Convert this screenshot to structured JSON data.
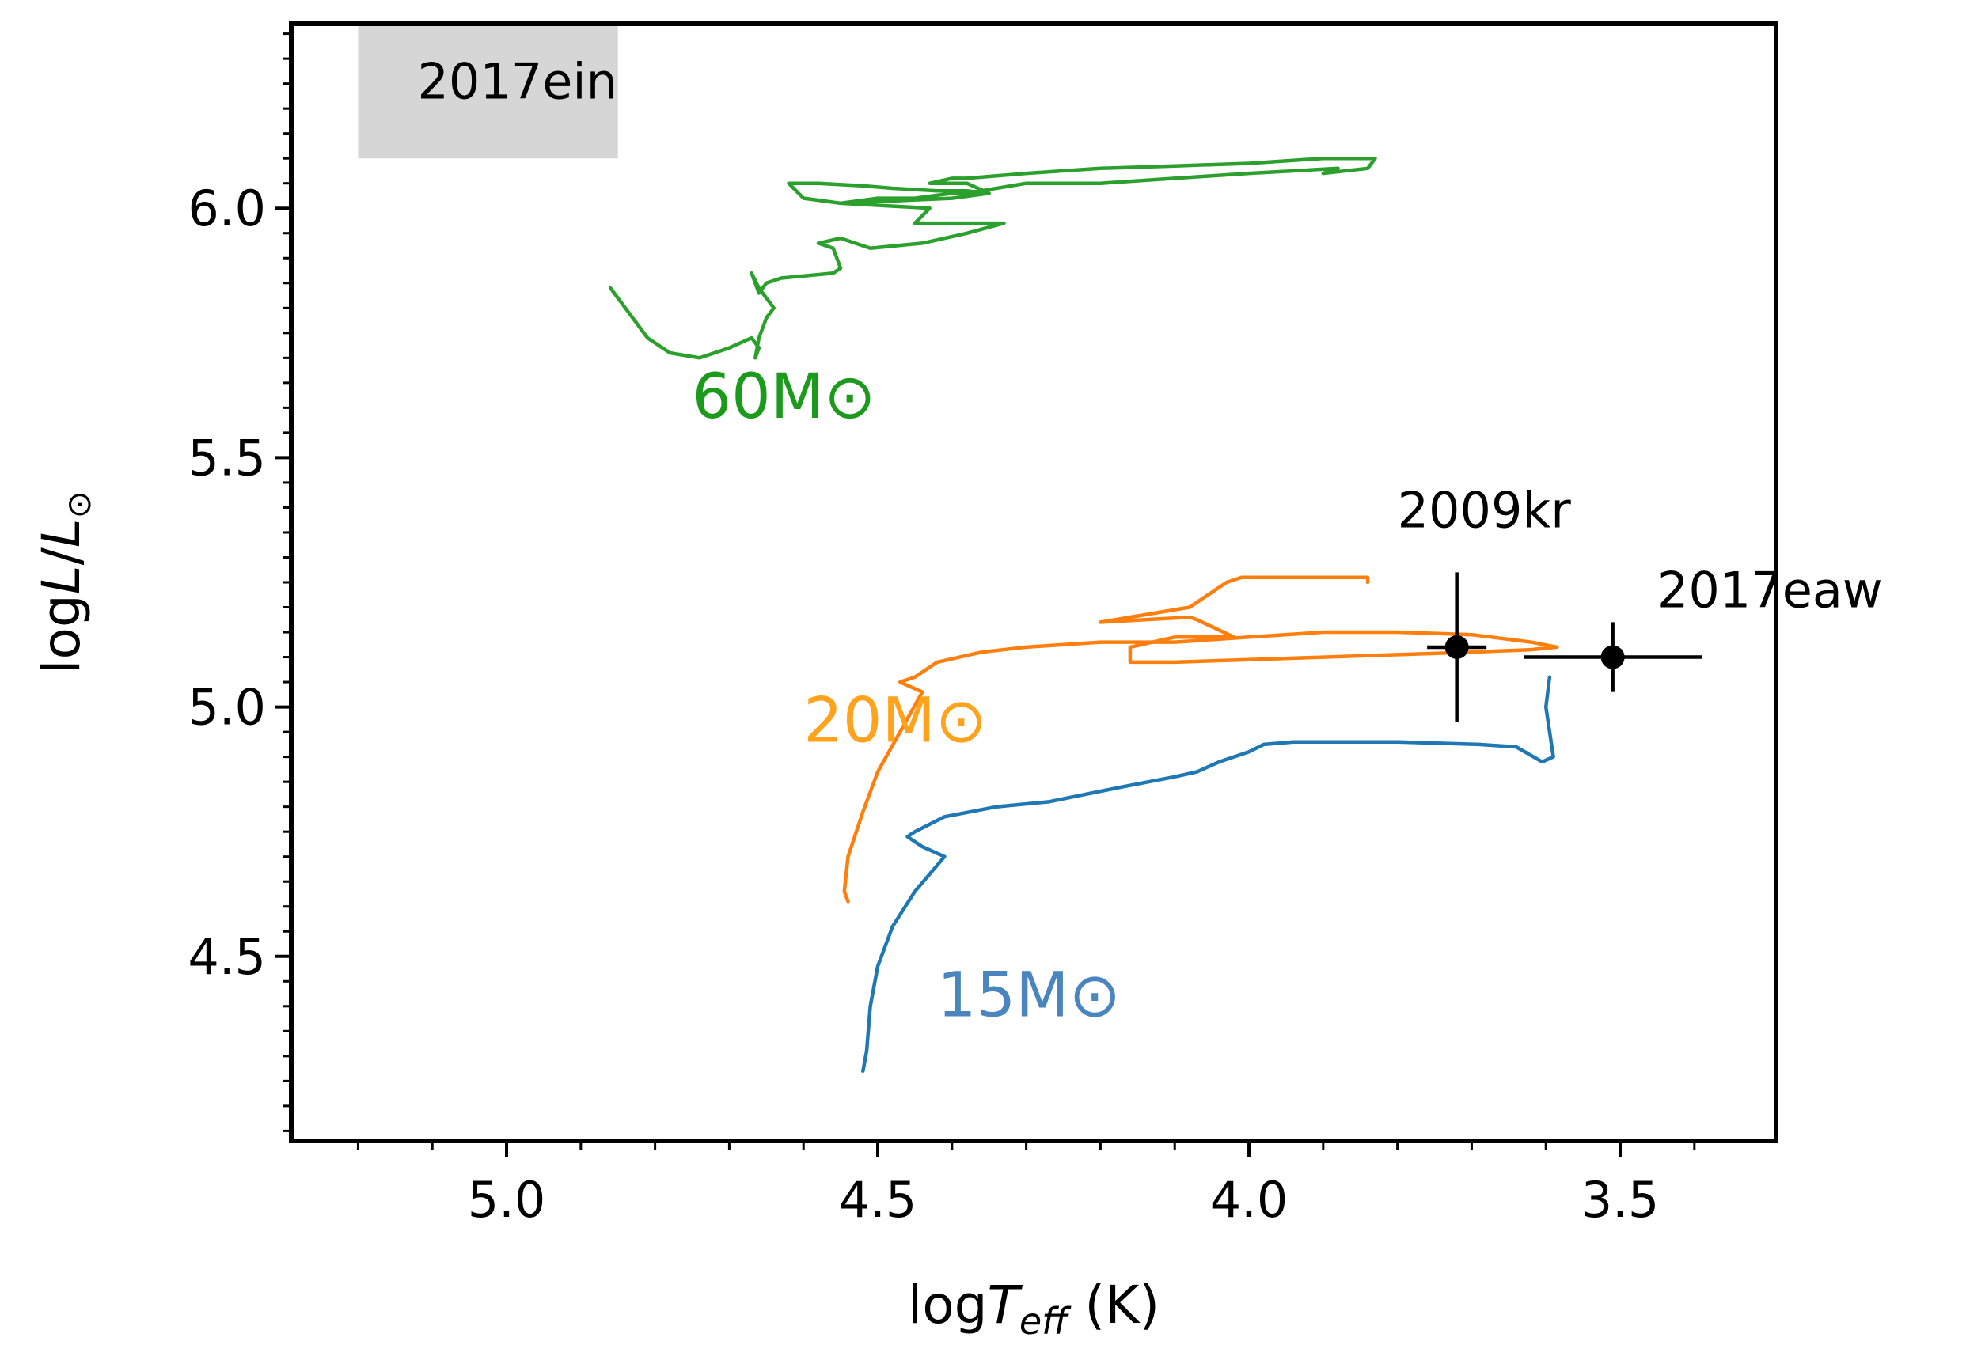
{
  "chart_data": {
    "type": "line",
    "title": "",
    "xlabel_parts": [
      "log",
      "T",
      "eff",
      " (K)"
    ],
    "ylabel_parts": [
      "log",
      "L",
      "/",
      "L",
      "⊙"
    ],
    "xlim": [
      5.29,
      3.29
    ],
    "ylim": [
      4.13,
      6.37
    ],
    "xticks": [
      5.0,
      4.5,
      4.0,
      3.5
    ],
    "xtick_labels": [
      "5.0",
      "4.5",
      "4.0",
      "3.5"
    ],
    "yticks": [
      4.5,
      5.0,
      5.5,
      6.0
    ],
    "ytick_labels": [
      "4.5",
      "5.0",
      "5.5",
      "6.0"
    ],
    "grid": false,
    "colors": {
      "m15": "#1f77b4",
      "m20": "#ff7f0e",
      "m60": "#2ca02c",
      "m15_label": "#4a86bd",
      "m20_label": "#ffa21c",
      "m60_label": "#1c9a1c",
      "shade": "#d6d6d6",
      "points": "#000000"
    },
    "series": [
      {
        "name": "15M⊙",
        "label": "15M⊙",
        "label_pos": [
          4.42,
          4.38
        ],
        "color_key": "m15",
        "label_color_key": "m15_label",
        "x": [
          4.52,
          4.515,
          4.51,
          4.5,
          4.48,
          4.45,
          4.41,
          4.44,
          4.46,
          4.45,
          4.41,
          4.34,
          4.27,
          4.17,
          4.1,
          4.07,
          4.04,
          4.0,
          3.98,
          3.94,
          3.88,
          3.8,
          3.69,
          3.64,
          3.605,
          3.59,
          3.6,
          3.595
        ],
        "y": [
          4.27,
          4.31,
          4.4,
          4.48,
          4.56,
          4.63,
          4.7,
          4.72,
          4.74,
          4.75,
          4.78,
          4.8,
          4.81,
          4.84,
          4.86,
          4.87,
          4.89,
          4.91,
          4.925,
          4.93,
          4.93,
          4.93,
          4.925,
          4.92,
          4.89,
          4.9,
          5.0,
          5.06
        ]
      },
      {
        "name": "20M⊙",
        "label": "20M⊙",
        "label_pos": [
          4.6,
          4.93
        ],
        "color_key": "m20",
        "label_color_key": "m20_label",
        "x": [
          4.54,
          4.545,
          4.54,
          4.52,
          4.5,
          4.47,
          4.44,
          4.47,
          4.45,
          4.42,
          4.36,
          4.3,
          4.2,
          4.1,
          4.0,
          3.9,
          3.8,
          3.7,
          3.62,
          3.585,
          3.62,
          3.7,
          3.8,
          3.9,
          4.0,
          4.1,
          4.16,
          4.16,
          4.1,
          4.02,
          4.07,
          4.08,
          4.2,
          4.08,
          4.03,
          4.01,
          3.84,
          3.84
        ],
        "y": [
          4.61,
          4.63,
          4.7,
          4.79,
          4.87,
          4.95,
          5.03,
          5.05,
          5.06,
          5.09,
          5.11,
          5.12,
          5.13,
          5.13,
          5.14,
          5.15,
          5.15,
          5.145,
          5.13,
          5.12,
          5.115,
          5.11,
          5.105,
          5.1,
          5.095,
          5.09,
          5.09,
          5.12,
          5.14,
          5.14,
          5.175,
          5.18,
          5.17,
          5.2,
          5.25,
          5.26,
          5.26,
          5.25
        ]
      },
      {
        "name": "60M⊙",
        "label": "60M⊙",
        "label_pos": [
          4.75,
          5.58
        ],
        "color_key": "m60",
        "label_color_key": "m60_label",
        "x": [
          4.86,
          4.84,
          4.81,
          4.78,
          4.74,
          4.7,
          4.67,
          4.66,
          4.665,
          4.66,
          4.65,
          4.64,
          4.66,
          4.67,
          4.66,
          4.65,
          4.63,
          4.56,
          4.55,
          4.56,
          4.58,
          4.55,
          4.51,
          4.44,
          4.38,
          4.33,
          4.45,
          4.43,
          4.55,
          4.4,
          4.35,
          4.38,
          4.43,
          4.4,
          4.38,
          4.3,
          4.2,
          4.1,
          4.0,
          3.9,
          3.83,
          3.84,
          3.9,
          3.88,
          4.0,
          4.1,
          4.2,
          4.3,
          4.38,
          4.4,
          4.45,
          4.5,
          4.55,
          4.6,
          4.62,
          4.58,
          4.52,
          4.48,
          4.42,
          4.38,
          4.35
        ],
        "y": [
          5.84,
          5.8,
          5.74,
          5.71,
          5.7,
          5.72,
          5.74,
          5.72,
          5.7,
          5.74,
          5.78,
          5.8,
          5.84,
          5.87,
          5.83,
          5.85,
          5.86,
          5.87,
          5.88,
          5.92,
          5.93,
          5.94,
          5.92,
          5.93,
          5.95,
          5.97,
          5.97,
          6.0,
          6.01,
          6.02,
          6.03,
          6.05,
          6.05,
          6.06,
          6.06,
          6.07,
          6.08,
          6.085,
          6.09,
          6.1,
          6.1,
          6.08,
          6.07,
          6.08,
          6.07,
          6.06,
          6.05,
          6.05,
          6.03,
          6.03,
          6.02,
          6.02,
          6.01,
          6.02,
          6.05,
          6.05,
          6.045,
          6.04,
          6.035,
          6.035,
          6.03
        ]
      }
    ],
    "points": [
      {
        "name": "2009kr",
        "x": 3.72,
        "y": 5.12,
        "xerr": 0.04,
        "yerr_lo": 0.15,
        "yerr_hi": 0.15,
        "label": "2009kr",
        "label_pos": [
          3.8,
          5.36
        ]
      },
      {
        "name": "2017eaw",
        "x": 3.51,
        "y": 5.1,
        "xerr": 0.12,
        "yerr_lo": 0.07,
        "yerr_hi": 0.07,
        "label": "2017eaw",
        "label_pos": [
          3.45,
          5.2
        ]
      }
    ],
    "shaded_region": {
      "label": "2017ein",
      "x": [
        5.2,
        4.85
      ],
      "y": [
        6.1,
        6.39
      ]
    },
    "annotations": [
      "2017ein",
      "2009kr",
      "2017eaw",
      "60M⊙",
      "20M⊙",
      "15M⊙"
    ]
  }
}
